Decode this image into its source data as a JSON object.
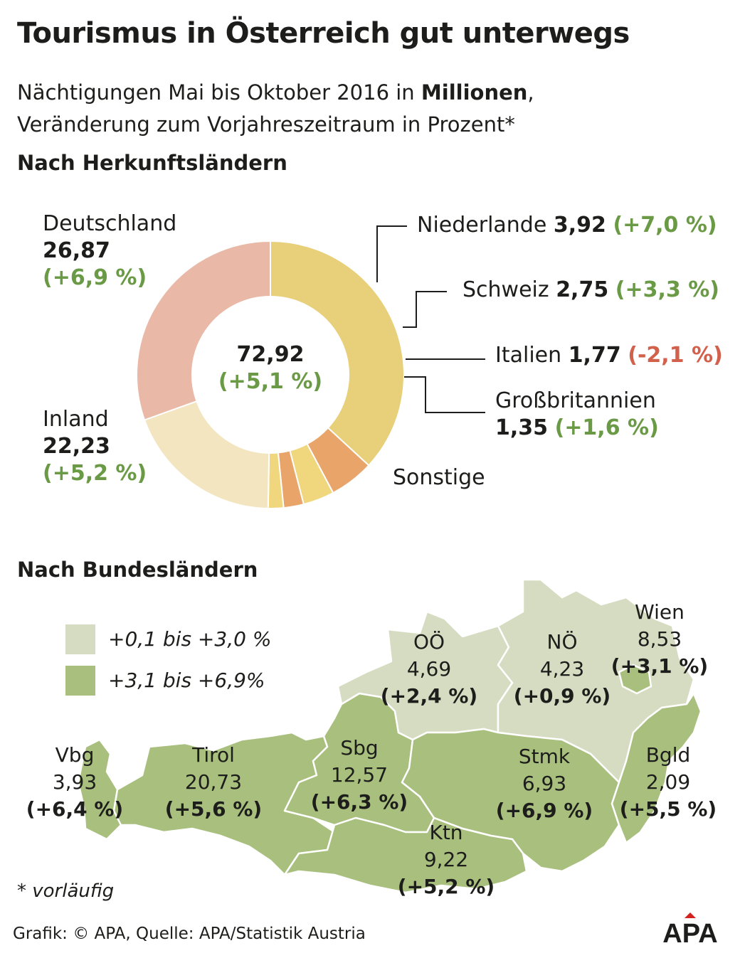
{
  "title": "Tourismus in Österreich gut unterwegs",
  "subtitle_line1_pre": "Nächtigungen Mai bis Oktober 2016 in ",
  "subtitle_line1_bold": "Millionen",
  "subtitle_line1_post": ",",
  "subtitle_line2": "Veränderung zum Vorjahreszeitraum in Prozent*",
  "section1": "Nach Herkunftsländern",
  "section2": "Nach Bundesländern",
  "chart_data": [
    {
      "type": "pie",
      "variant": "donut",
      "center_value": "72,92",
      "center_change": "(+5,1 %)",
      "slices": [
        {
          "label": "Deutschland",
          "value": 26.87,
          "value_text": "26,87",
          "change": "(+6,9 %)",
          "color": "#e8cf79"
        },
        {
          "label": "Niederlande",
          "value": 3.92,
          "value_text": "3,92",
          "change": "(+7,0 %)",
          "color": "#e9a46a"
        },
        {
          "label": "Schweiz",
          "value": 2.75,
          "value_text": "2,75",
          "change": "(+3,3 %)",
          "color": "#f0d67c"
        },
        {
          "label": "Italien",
          "value": 1.77,
          "value_text": "1,77",
          "change": "(-2,1 %)",
          "color": "#e9a46a"
        },
        {
          "label": "Großbritannien",
          "value": 1.35,
          "value_text": "1,35",
          "change": "(+1,6 %)",
          "color": "#f0d67c"
        },
        {
          "label": "Sonstige",
          "value": 14.03,
          "color": "#f2e5bf"
        },
        {
          "label": "Inland",
          "value": 22.23,
          "value_text": "22,23",
          "change": "(+5,2 %)",
          "color": "#e9b8a6"
        }
      ]
    },
    {
      "type": "choropleth",
      "legend": [
        {
          "label": "+0,1 bis +3,0 %",
          "color": "#d6dcc1"
        },
        {
          "label": "+3,1 bis +6,9%",
          "color": "#a8bf7e"
        }
      ],
      "regions": [
        {
          "label": "Vbg",
          "value": "3,93",
          "change": "(+6,4 %)"
        },
        {
          "label": "Tirol",
          "value": "20,73",
          "change": "(+5,6 %)"
        },
        {
          "label": "Sbg",
          "value": "12,57",
          "change": "(+6,3 %)"
        },
        {
          "label": "OÖ",
          "value": "4,69",
          "change": "(+2,4 %)"
        },
        {
          "label": "NÖ",
          "value": "4,23",
          "change": "(+0,9 %)"
        },
        {
          "label": "Wien",
          "value": "8,53",
          "change": "(+3,1 %)"
        },
        {
          "label": "Stmk",
          "value": "6,93",
          "change": "(+6,9 %)"
        },
        {
          "label": "Bgld",
          "value": "2,09",
          "change": "(+5,5 %)"
        },
        {
          "label": "Ktn",
          "value": "9,22",
          "change": "(+5,2 %)"
        }
      ]
    }
  ],
  "footnote": "* vorläufig",
  "credit": "Grafik: © APA, Quelle: APA/Statistik Austria",
  "logo_text": "APA"
}
